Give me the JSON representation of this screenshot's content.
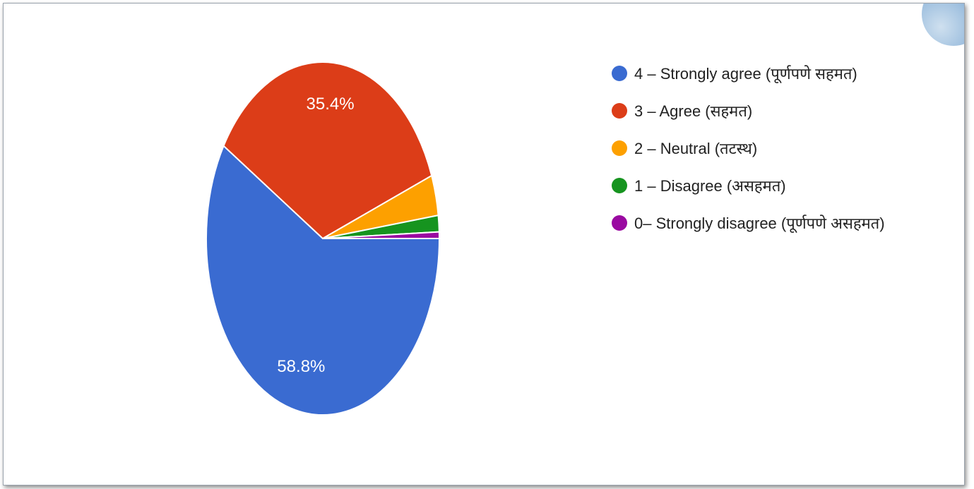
{
  "chart_data": {
    "type": "pie",
    "slices": [
      {
        "label": "4 – Strongly agree (पूर्णपणे सहमत)",
        "value": 58.8,
        "color": "#3a6bd1",
        "value_label": "58.8%"
      },
      {
        "label": "3 – Agree (सहमत)",
        "value": 35.4,
        "color": "#dc3d18",
        "value_label": "35.4%"
      },
      {
        "label": "2 – Neutral (तटस्थ)",
        "value": 3.7,
        "color": "#fda000",
        "value_label": ""
      },
      {
        "label": "1 – Disagree (असहमत)",
        "value": 1.5,
        "color": "#16941f",
        "value_label": ""
      },
      {
        "label": "0– Strongly disagree (पूर्णपणे असहमत)",
        "value": 0.6,
        "color": "#9a0aa1",
        "value_label": ""
      }
    ],
    "legend_position": "right"
  }
}
